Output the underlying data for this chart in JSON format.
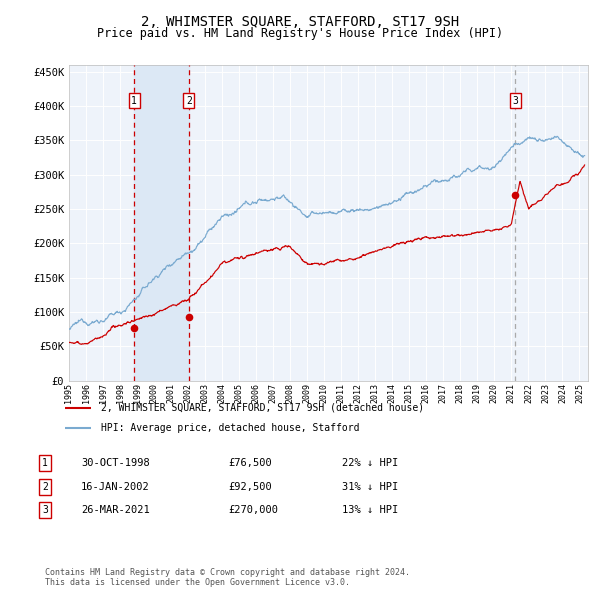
{
  "title": "2, WHIMSTER SQUARE, STAFFORD, ST17 9SH",
  "subtitle": "Price paid vs. HM Land Registry's House Price Index (HPI)",
  "title_fontsize": 10,
  "subtitle_fontsize": 8.5,
  "bg_color": "#ffffff",
  "plot_bg_color": "#eef3fa",
  "grid_color": "#ffffff",
  "ylim": [
    0,
    460000
  ],
  "yticks": [
    0,
    50000,
    100000,
    150000,
    200000,
    250000,
    300000,
    350000,
    400000,
    450000
  ],
  "ytick_labels": [
    "£0",
    "£50K",
    "£100K",
    "£150K",
    "£200K",
    "£250K",
    "£300K",
    "£350K",
    "£400K",
    "£450K"
  ],
  "xmin": 1995.0,
  "xmax": 2025.5,
  "sale_dates": [
    1998.83,
    2002.04,
    2021.23
  ],
  "sale_prices": [
    76500,
    92500,
    270000
  ],
  "sale_labels": [
    "1",
    "2",
    "3"
  ],
  "red_color": "#cc0000",
  "blue_color": "#7aaad0",
  "shade_color": "#dce8f5",
  "vline_color": "#cc0000",
  "vline3_color": "#aaaaaa",
  "legend_line1": "2, WHIMSTER SQUARE, STAFFORD, ST17 9SH (detached house)",
  "legend_line2": "HPI: Average price, detached house, Stafford",
  "table_rows": [
    [
      "1",
      "30-OCT-1998",
      "£76,500",
      "22% ↓ HPI"
    ],
    [
      "2",
      "16-JAN-2002",
      "£92,500",
      "31% ↓ HPI"
    ],
    [
      "3",
      "26-MAR-2021",
      "£270,000",
      "13% ↓ HPI"
    ]
  ],
  "footnote": "Contains HM Land Registry data © Crown copyright and database right 2024.\nThis data is licensed under the Open Government Licence v3.0.",
  "font_family": "DejaVu Sans Mono"
}
